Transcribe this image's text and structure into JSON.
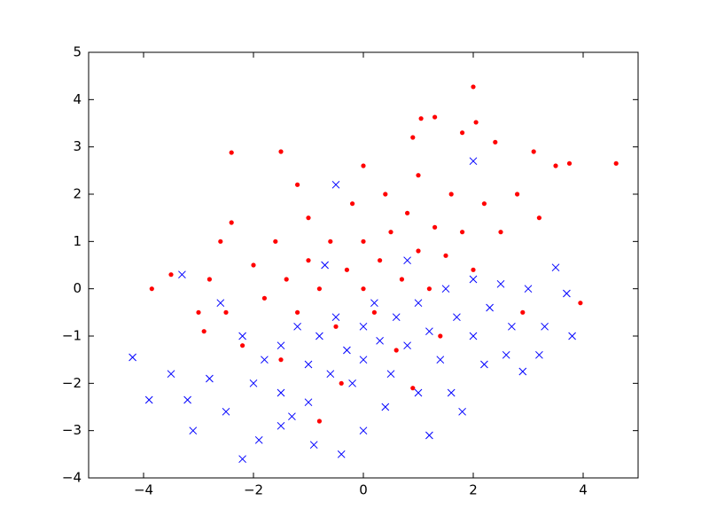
{
  "chart_data": {
    "type": "scatter",
    "xlim": [
      -5,
      5
    ],
    "ylim": [
      -4,
      5
    ],
    "xticks": [
      {
        "value": -4,
        "label": "−4"
      },
      {
        "value": -2,
        "label": "−2"
      },
      0,
      2,
      4
    ],
    "yticks": [
      {
        "value": -4,
        "label": "−4"
      },
      {
        "value": -3,
        "label": "−3"
      },
      {
        "value": -2,
        "label": "−2"
      },
      {
        "value": -1,
        "label": "−1"
      },
      0,
      1,
      2,
      3,
      4,
      5
    ],
    "grid": false,
    "series": [
      {
        "color": "#0000ff",
        "marker": "x",
        "x": [
          -2,
          -1.8,
          -1.5,
          -1.5,
          -1.2,
          -1,
          -1,
          -0.8,
          -0.6,
          -0.5,
          -0.3,
          -0.2,
          0,
          0,
          0.2,
          0.3,
          0.5,
          0.6,
          0.8,
          1,
          1,
          1.2,
          1.4,
          1.5,
          1.7,
          2,
          2,
          2.3,
          2.5,
          2.7,
          -2.5,
          -2.8,
          -2.2,
          -1.3,
          0.4,
          1.6,
          2.2,
          3,
          -2.6,
          -0.7,
          0.8,
          -1.9,
          -4.2,
          -3.9,
          -3.2,
          -3.1,
          -2.2,
          -0.4,
          1.2,
          1.8,
          3.8,
          3.5,
          3.2,
          2.9,
          2.6,
          -3.3,
          -0.9,
          0,
          2,
          -0.5,
          -3.5,
          -1.5,
          3.7,
          3.3
        ],
        "values": [
          -2,
          -1.5,
          -1.2,
          -2.2,
          -0.8,
          -1.6,
          -2.4,
          -1,
          -1.8,
          -0.6,
          -1.3,
          -2,
          -0.8,
          -1.5,
          -0.3,
          -1.1,
          -1.8,
          -0.6,
          -1.2,
          -0.3,
          -2.2,
          -0.9,
          -1.5,
          0,
          -0.6,
          -1,
          0.2,
          -0.4,
          0.1,
          -0.8,
          -2.6,
          -1.9,
          -1,
          -2.7,
          -2.5,
          -2.2,
          -1.6,
          0,
          -0.3,
          0.5,
          0.6,
          -3.2,
          -1.45,
          -2.35,
          -2.35,
          -3,
          -3.6,
          -3.5,
          -3.1,
          -2.6,
          -1,
          0.45,
          -1.4,
          -1.75,
          -1.4,
          0.3,
          -3.3,
          -3,
          2.7,
          2.2,
          -1.8,
          -2.9,
          -0.1,
          -0.8
        ]
      },
      {
        "color": "#ff0000",
        "marker": "o",
        "x": [
          -2,
          -1.8,
          -1.6,
          -1.4,
          -1.2,
          -1,
          -1,
          -0.8,
          -0.6,
          -0.5,
          -0.3,
          -0.2,
          0,
          0,
          0.2,
          0.3,
          0.4,
          0.5,
          0.7,
          0.8,
          1,
          1,
          1.2,
          1.3,
          1.5,
          1.6,
          1.8,
          2,
          2.2,
          2.5,
          2.8,
          -2.5,
          -2.2,
          -1.5,
          -0.4,
          0.6,
          1.4,
          -2.8,
          -3,
          3.2,
          -1.2,
          0,
          0.9,
          -2.4,
          4.6,
          3.95,
          2,
          2.05,
          1.3,
          1.05,
          1.8,
          2.4,
          3.1,
          3.75,
          -2.4,
          -3.85,
          -2.9,
          -0.8,
          3.5,
          2.9,
          -1.5,
          -3.5,
          -2.6,
          0.9
        ],
        "values": [
          0.5,
          -0.2,
          1,
          0.2,
          -0.5,
          0.6,
          1.5,
          0,
          1,
          -0.8,
          0.4,
          1.8,
          0,
          1,
          -0.5,
          0.6,
          2,
          1.2,
          0.2,
          1.6,
          0.8,
          2.4,
          0,
          1.3,
          0.7,
          2,
          1.2,
          0.4,
          1.8,
          1.2,
          2,
          -0.5,
          -1.2,
          -1.5,
          -2,
          -1.3,
          -1,
          0.2,
          -0.5,
          1.5,
          2.2,
          2.6,
          -2.1,
          1.4,
          2.65,
          -0.3,
          4.27,
          3.52,
          3.63,
          3.6,
          3.3,
          3.1,
          2.9,
          2.65,
          2.88,
          0,
          -0.9,
          -2.8,
          2.6,
          -0.5,
          2.9,
          0.3,
          1,
          3.2
        ]
      }
    ]
  }
}
